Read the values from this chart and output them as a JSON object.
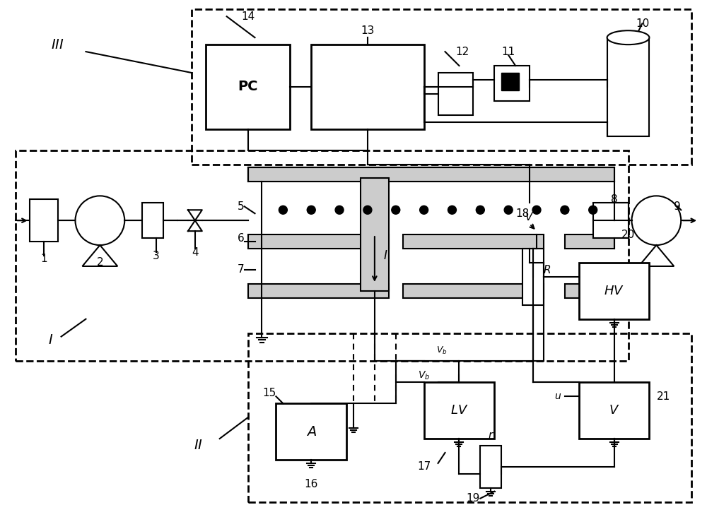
{
  "fig_width": 10.0,
  "fig_height": 7.32,
  "bg_color": "#ffffff",
  "line_color": "#000000",
  "dashed_color": "#000000",
  "gray_color": "#999999",
  "light_gray": "#cccccc",
  "dark_gray": "#666666"
}
